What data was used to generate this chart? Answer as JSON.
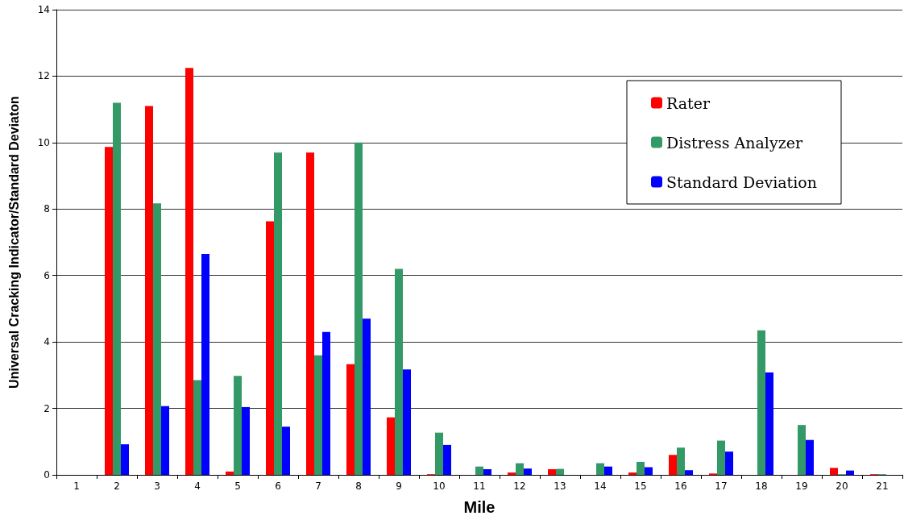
{
  "chart_data": {
    "type": "bar",
    "xlabel": "Mile",
    "ylabel": "Universal Cracking Indicator/Standard Deviaton",
    "categories": [
      "1",
      "2",
      "3",
      "4",
      "5",
      "6",
      "7",
      "8",
      "9",
      "10",
      "11",
      "12",
      "13",
      "14",
      "15",
      "16",
      "17",
      "18",
      "19",
      "20",
      "21"
    ],
    "series": [
      {
        "name": "Rater",
        "color": "#ff0000",
        "values": [
          0,
          9.87,
          11.1,
          12.25,
          0.1,
          7.63,
          9.7,
          3.33,
          1.73,
          0.02,
          0,
          0.07,
          0.17,
          0,
          0.07,
          0.6,
          0.04,
          0,
          0,
          0.21,
          0.02
        ]
      },
      {
        "name": "Distress Analyzer",
        "color": "#339966",
        "values": [
          0,
          11.2,
          8.17,
          2.85,
          2.98,
          9.7,
          3.6,
          10.0,
          6.2,
          1.27,
          0.25,
          0.35,
          0.18,
          0.35,
          0.39,
          0.82,
          1.03,
          4.35,
          1.5,
          0.02,
          0.02
        ]
      },
      {
        "name": "Standard Deviation",
        "color": "#0000ff",
        "values": [
          0,
          0.92,
          2.07,
          6.65,
          2.04,
          1.45,
          4.3,
          4.7,
          3.17,
          0.9,
          0.17,
          0.19,
          0,
          0.25,
          0.23,
          0.14,
          0.7,
          3.08,
          1.05,
          0.13,
          0
        ]
      }
    ],
    "ylim": [
      0,
      14
    ],
    "yticks": [
      0,
      2,
      4,
      6,
      8,
      10,
      12,
      14
    ],
    "grid": "y",
    "legend": "top right"
  }
}
